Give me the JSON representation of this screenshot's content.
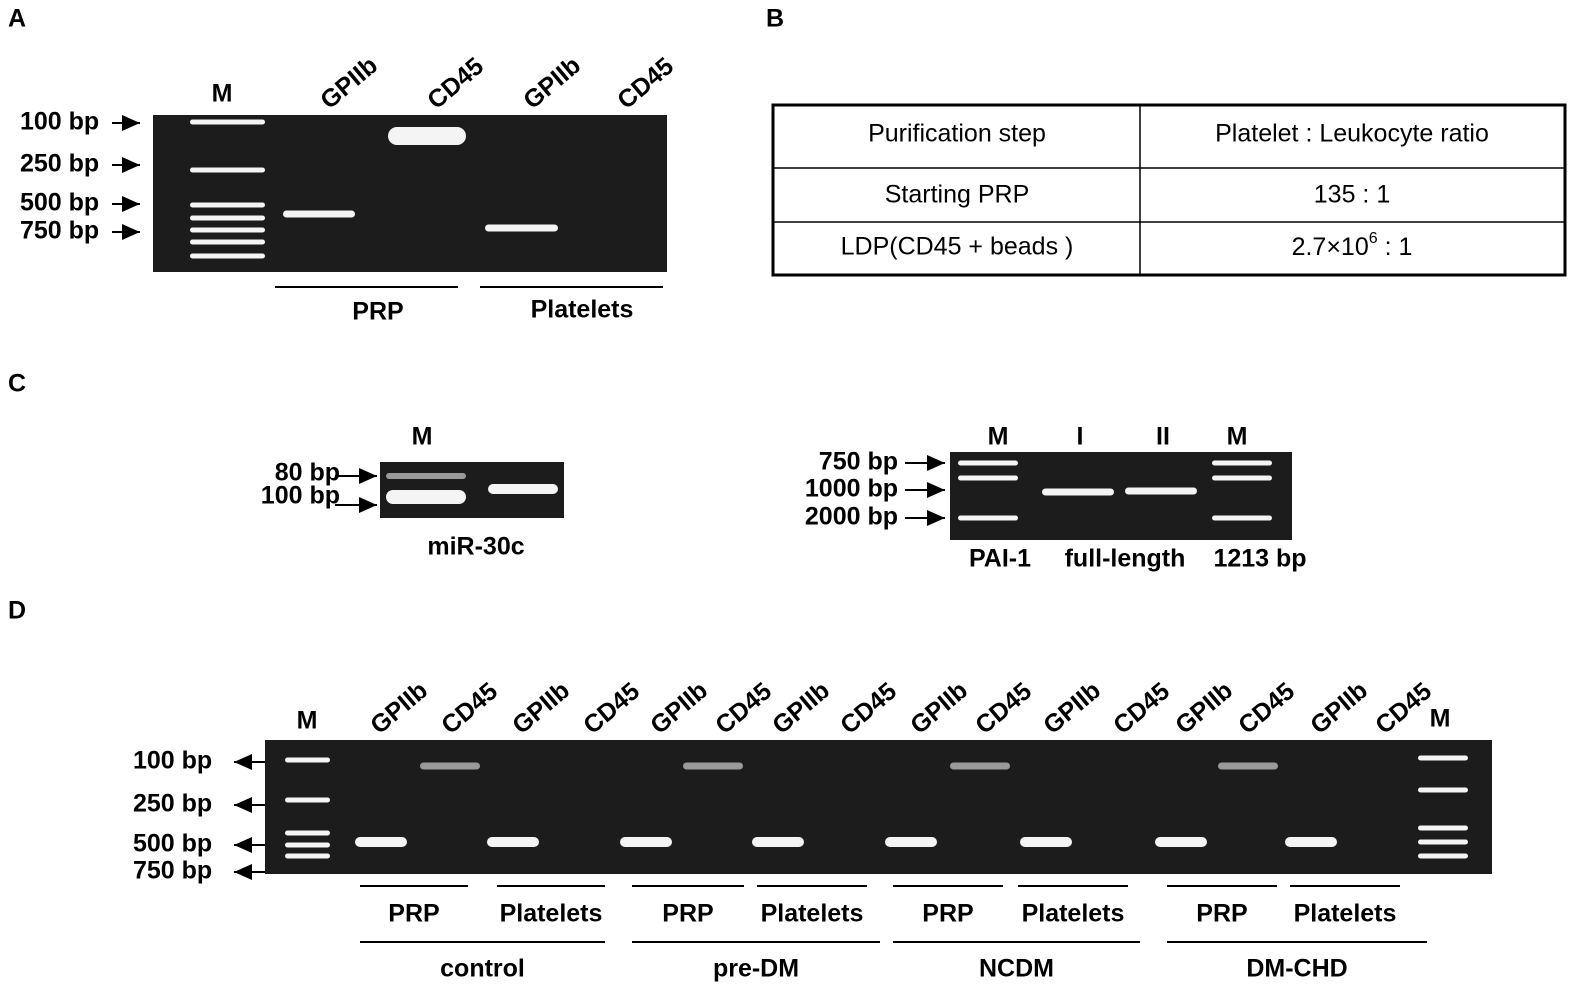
{
  "panels": {
    "a": {
      "label": "A",
      "marker": "M",
      "lanes": [
        "GPIIb",
        "CD45",
        "GPIIb",
        "CD45"
      ],
      "sizes": [
        "100 bp",
        "250 bp",
        "500 bp",
        "750 bp"
      ],
      "groups": [
        "PRP",
        "Platelets"
      ]
    },
    "b": {
      "label": "B",
      "table": {
        "header": [
          "Purification step",
          "Platelet : Leukocyte ratio"
        ],
        "rows": [
          [
            "Starting PRP",
            "135 : 1"
          ],
          [
            "LDP(CD45 + beads )",
            {
              "base": "2.7×10",
              "exponent": "6",
              "rest": " : 1"
            }
          ]
        ]
      }
    },
    "c": {
      "label": "C",
      "left": {
        "marker": "M",
        "sizes": [
          "80  bp",
          "100 bp"
        ],
        "caption": "miR-30c"
      },
      "right": {
        "lanes": [
          "M",
          "I",
          "II",
          "M"
        ],
        "sizes": [
          "750 bp",
          "1000 bp",
          "2000 bp"
        ],
        "caption": [
          "PAI-1",
          "full-length",
          "1213 bp"
        ]
      }
    },
    "d": {
      "label": "D",
      "markers": [
        "M",
        "M"
      ],
      "lanes": [
        "GPIIb",
        "CD45",
        "GPIIb",
        "CD45",
        "GPIIb",
        "CD45",
        "GPIIb",
        "CD45",
        "GPIIb",
        "CD45",
        "GPIIb",
        "CD45",
        "GPIIb",
        "CD45",
        "GPIIb",
        "CD45"
      ],
      "sizes": [
        "100 bp",
        "250 bp",
        "500 bp",
        "750 bp"
      ],
      "subgroups": [
        "PRP",
        "Platelets",
        "PRP",
        "Platelets",
        "PRP",
        "Platelets",
        "PRP",
        "Platelets"
      ],
      "groups": [
        "control",
        "pre-DM",
        "NCDM",
        "DM-CHD"
      ]
    }
  }
}
